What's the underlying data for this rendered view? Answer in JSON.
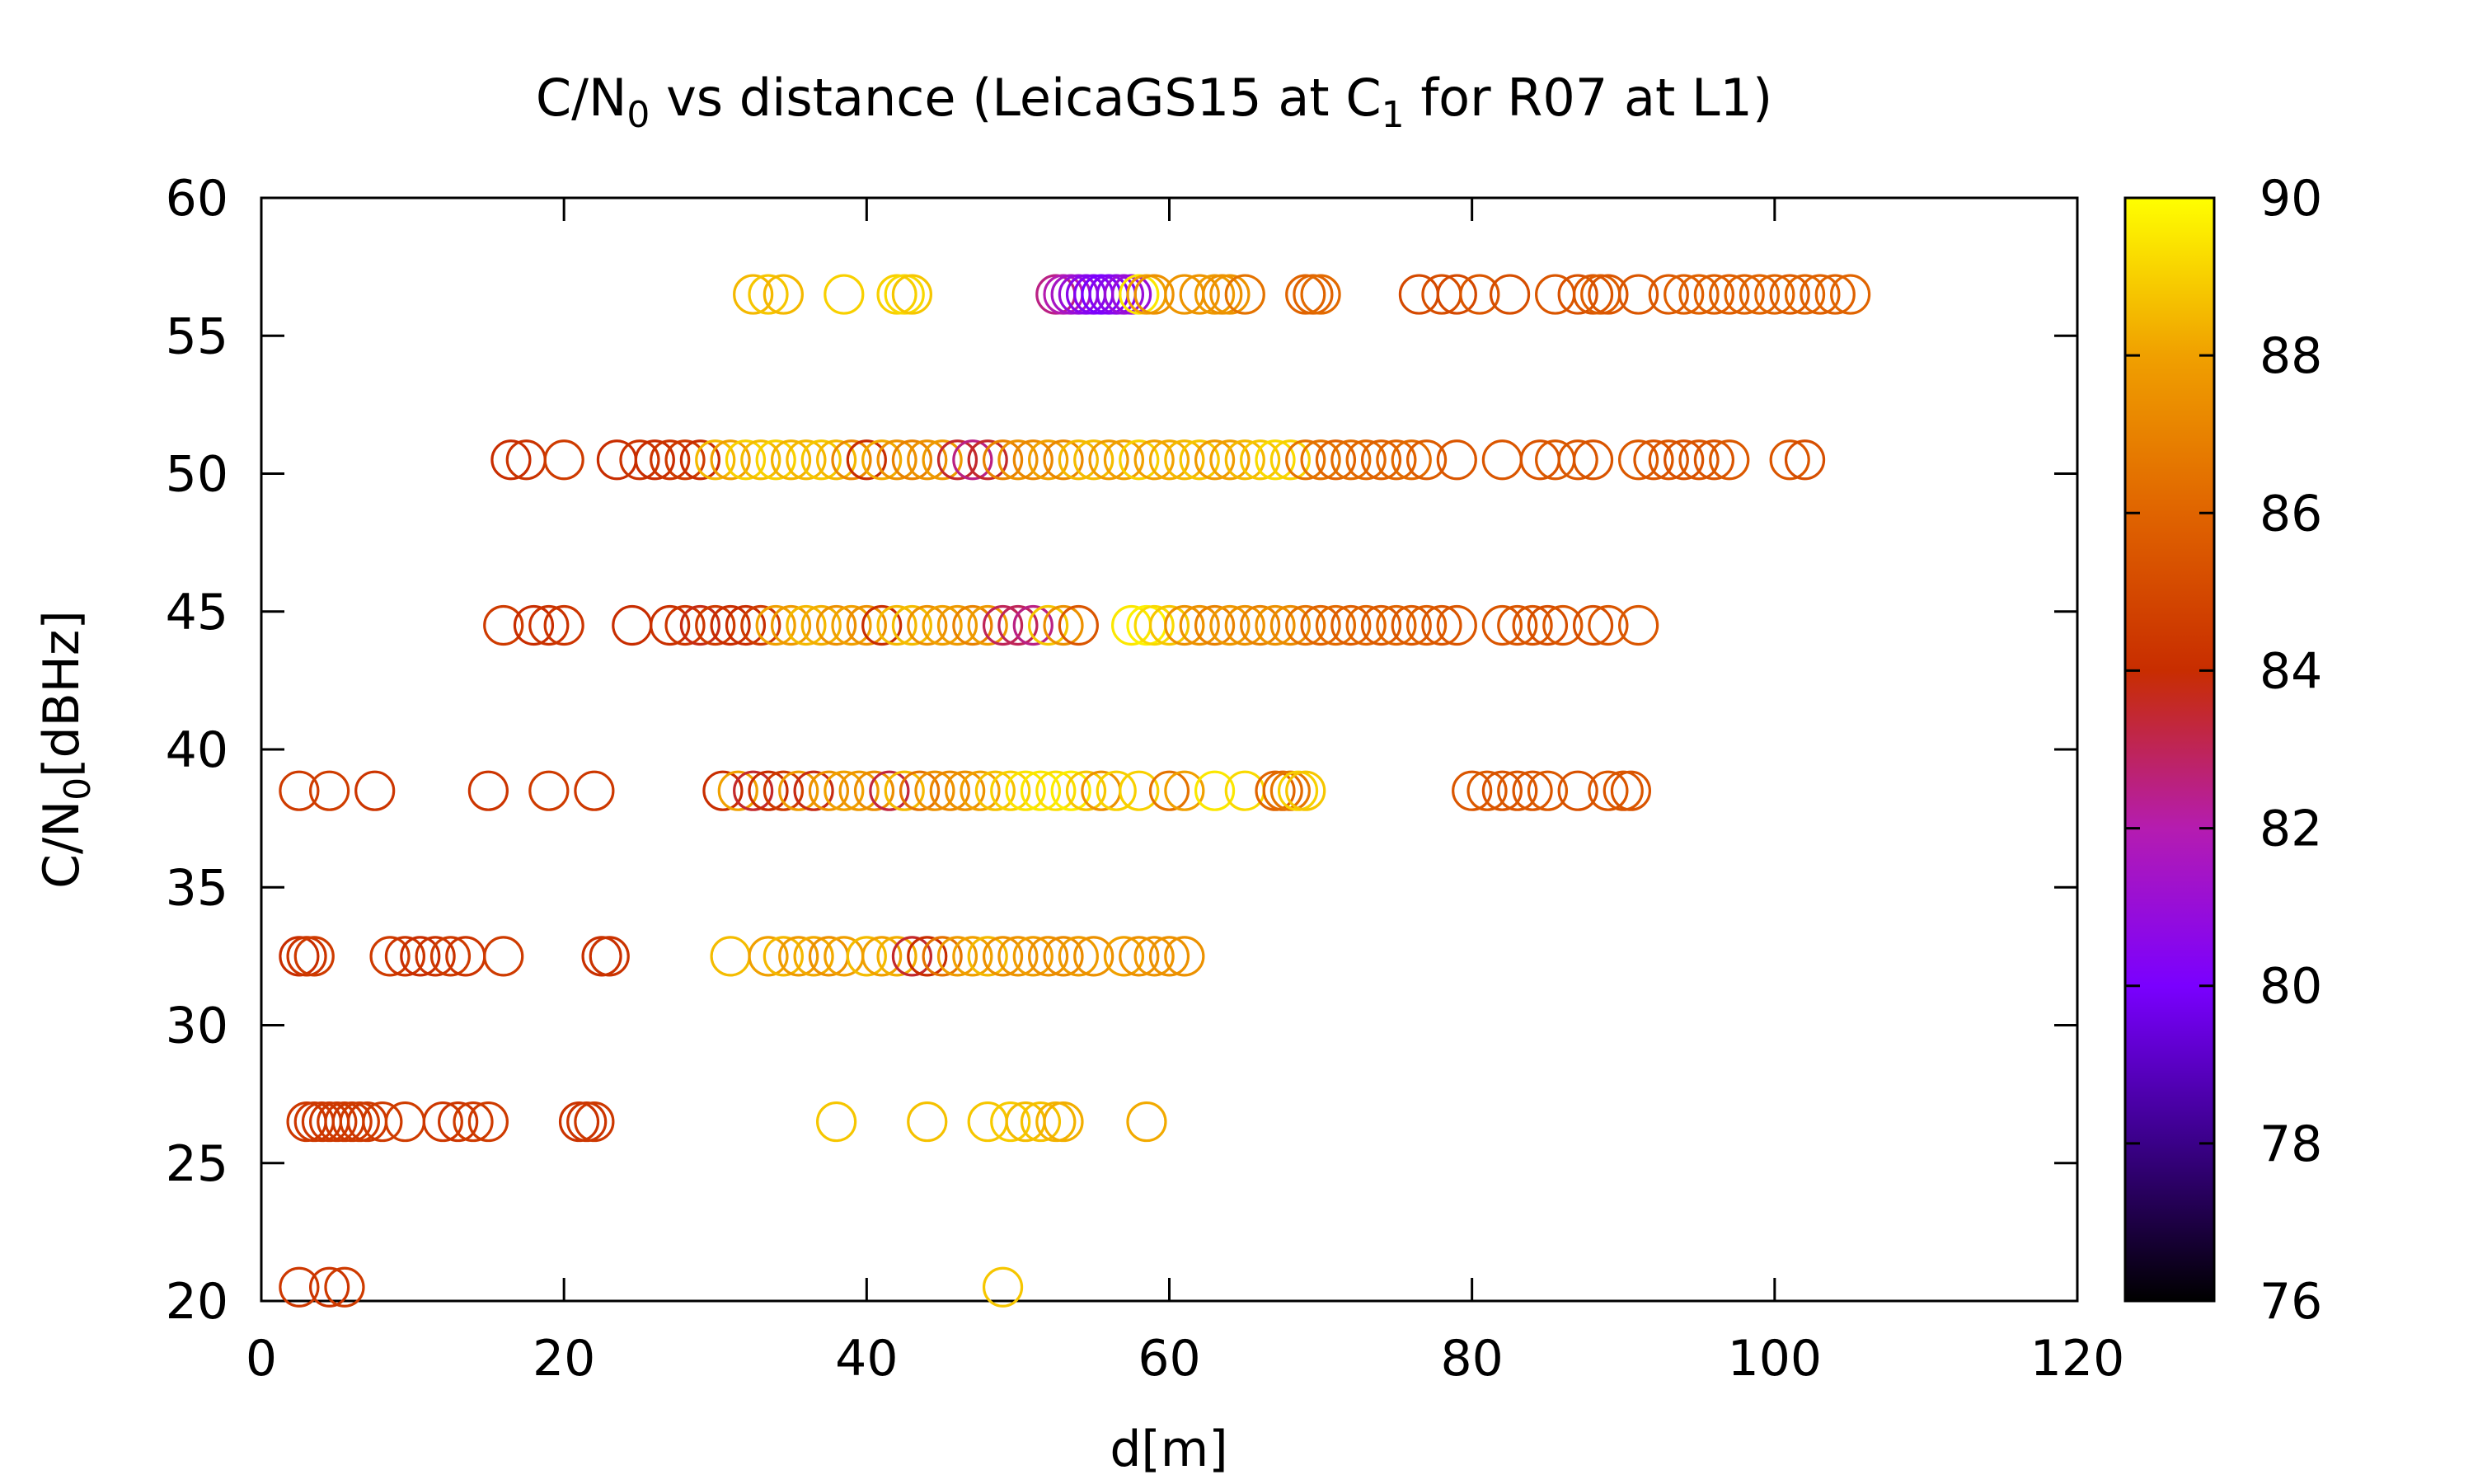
{
  "chart_data": {
    "type": "scatter",
    "title": {
      "prefix": "C/N",
      "sub": "0",
      "mid": " vs distance (LeicaGS15 at C",
      "sub2": "1",
      "suffix": " for R07 at L1)"
    },
    "xlabel": "d[m]",
    "ylabel": {
      "prefix": "C/N",
      "sub": "0",
      "suffix": "[dBHz]"
    },
    "xlim": [
      0,
      120
    ],
    "ylim": [
      20,
      60
    ],
    "xticks": [
      "0",
      "20",
      "40",
      "60",
      "80",
      "100",
      "120"
    ],
    "yticks": [
      "20",
      "25",
      "30",
      "35",
      "40",
      "45",
      "50",
      "55",
      "60"
    ],
    "colorbar": {
      "range": [
        76,
        90
      ],
      "ticks": [
        "76",
        "78",
        "80",
        "82",
        "84",
        "86",
        "88",
        "90"
      ],
      "colormap": [
        "#000000",
        "#3a0088",
        "#7a00ff",
        "#b51cb0",
        "#c82d00",
        "#e06400",
        "#f0a000",
        "#ffff00"
      ]
    },
    "marker": "open-circle",
    "groups": [
      {
        "y": 56.5,
        "x": [
          32.5,
          33.5,
          34.5,
          38.5,
          42,
          42.5,
          43,
          52.5,
          53,
          53.5,
          54,
          54.5,
          55,
          55.5,
          56,
          56.5,
          57,
          57.5,
          58,
          58.5,
          59,
          61,
          62,
          63,
          63.5,
          64,
          65,
          69,
          69.5,
          70,
          76.5,
          78,
          79,
          80.5,
          82.5,
          85.5,
          87,
          88,
          88.5,
          89,
          91,
          93,
          94,
          95,
          96,
          97,
          98,
          99,
          100,
          101,
          102,
          103,
          104,
          105
        ],
        "c": [
          88.5,
          88.8,
          88.5,
          89,
          89,
          89.2,
          88.8,
          82.5,
          82,
          81.5,
          81,
          80.5,
          80.3,
          80,
          80.2,
          80.5,
          81,
          81,
          89.5,
          88,
          87.5,
          87.6,
          87.6,
          87.8,
          87.5,
          87.6,
          86.5,
          86,
          86,
          86.2,
          85,
          85.2,
          85,
          85.5,
          85.2,
          85.5,
          85.3,
          85.5,
          85.8,
          85.5,
          85.5,
          85.6,
          85.8,
          85.9,
          85.8,
          85.8,
          85.9,
          86,
          86,
          85.7,
          86,
          85.9,
          85.9,
          86
        ]
      },
      {
        "y": 50.5,
        "x": [
          16.5,
          17.5,
          20,
          23.5,
          25,
          26,
          27,
          28,
          29,
          30,
          31,
          32,
          33,
          34,
          35,
          36,
          37,
          38,
          39,
          40,
          41,
          42,
          43,
          44,
          45,
          46,
          47,
          48,
          49,
          50,
          51,
          52,
          53,
          54,
          55,
          56,
          57,
          58,
          59,
          60,
          61,
          62,
          63,
          64,
          65,
          66,
          67,
          68,
          69,
          70,
          71,
          72,
          73,
          74,
          75,
          76,
          77,
          79,
          82,
          84.5,
          85.5,
          87,
          88,
          91,
          92,
          93,
          94,
          95,
          96,
          97,
          101,
          102
        ],
        "c": [
          84,
          84.2,
          84.5,
          84,
          84.2,
          84,
          84.3,
          84.5,
          84,
          88.5,
          88,
          89,
          88.6,
          89,
          88.4,
          88.5,
          88.8,
          88.5,
          87.2,
          84,
          88.2,
          87.5,
          87,
          87.5,
          87.8,
          83.5,
          82.5,
          83.5,
          87,
          87.5,
          87.2,
          88,
          87.2,
          88.5,
          88.6,
          87.8,
          88,
          89,
          88,
          88.2,
          88.5,
          88.8,
          87.8,
          88,
          88.5,
          88.8,
          89.2,
          89,
          86.5,
          86.5,
          86,
          86.3,
          86.1,
          85.9,
          86,
          86.2,
          85.7,
          85.5,
          85.5,
          85.4,
          85.6,
          85.5,
          85.4,
          85.6,
          85.5,
          85.5,
          85.3,
          85.5,
          85.4,
          85.6,
          85.5,
          85.2
        ]
      },
      {
        "y": 44.5,
        "x": [
          16,
          18,
          19,
          20,
          24.5,
          27,
          28,
          29,
          30,
          31,
          32,
          33,
          34,
          35,
          36,
          37,
          38,
          39,
          40,
          41,
          42,
          43,
          44,
          45,
          46,
          47,
          48,
          49,
          50,
          51,
          52,
          53,
          54,
          57.5,
          58.5,
          59,
          60,
          61,
          62,
          63,
          64,
          65,
          66,
          67,
          68,
          69,
          70,
          71,
          72,
          73,
          74,
          75,
          76,
          77,
          78,
          79,
          82,
          83,
          84,
          85,
          86,
          88,
          89,
          91
        ],
        "c": [
          84.5,
          84,
          84.2,
          84.3,
          84,
          84.1,
          84.3,
          83.8,
          84.5,
          84,
          84,
          84.5,
          88,
          87.8,
          88.5,
          88.3,
          87.5,
          88,
          87.5,
          84,
          88.5,
          88.6,
          87.5,
          88,
          87.8,
          87,
          87.8,
          83,
          83,
          82.5,
          88.8,
          87.5,
          85.5,
          89.5,
          89.7,
          89.2,
          88.8,
          87.5,
          87.5,
          87,
          87.7,
          87.5,
          87,
          87.5,
          87.3,
          86.5,
          86,
          86.2,
          85.8,
          86,
          85.6,
          86,
          85.6,
          85.8,
          85.5,
          85.5,
          85.5,
          85.5,
          85.4,
          85.2,
          85.5,
          85.2,
          85.5,
          85.5
        ]
      },
      {
        "y": 38.5,
        "x": [
          2.5,
          4.5,
          7.5,
          15,
          19,
          22,
          30.5,
          31.5,
          32.5,
          33.5,
          34.5,
          35.5,
          36.5,
          37.5,
          38.5,
          39.5,
          40.5,
          41.5,
          42.5,
          43.5,
          44.5,
          45.5,
          46.5,
          47.5,
          48.5,
          49.5,
          50.5,
          51.5,
          52.5,
          53.5,
          54.5,
          55.5,
          56.5,
          58,
          60,
          61,
          63,
          65,
          67,
          67.5,
          68,
          68.5,
          69,
          80,
          81,
          82,
          83,
          84,
          85,
          87,
          89,
          90,
          90.5
        ],
        "c": [
          84.5,
          84.6,
          84.3,
          84.3,
          84.5,
          84.4,
          84,
          88,
          83.5,
          84,
          84.5,
          87.8,
          83.8,
          87.5,
          88,
          87.7,
          87.4,
          83.3,
          88.5,
          86.5,
          87.5,
          87.2,
          87.5,
          88,
          88.7,
          89,
          89.4,
          89.5,
          89.3,
          89.6,
          88.8,
          87.5,
          89,
          89,
          86.5,
          88,
          89.5,
          89.2,
          86,
          86.2,
          86.6,
          89,
          88.8,
          85.5,
          85.6,
          85.4,
          85.5,
          85.5,
          85.6,
          85.3,
          85.5,
          85.5,
          85.4
        ]
      },
      {
        "y": 32.5,
        "x": [
          2.5,
          3,
          3.5,
          8.5,
          9.5,
          10.5,
          11.5,
          12.5,
          13.5,
          16,
          22.5,
          23,
          31,
          33.5,
          34.5,
          35.5,
          36.5,
          37.5,
          38.5,
          40,
          41,
          42,
          43,
          44,
          45,
          46,
          47,
          48,
          49,
          50,
          51,
          52,
          53,
          54,
          55,
          57,
          58,
          59,
          60,
          61
        ],
        "c": [
          84,
          84.3,
          84.5,
          84.5,
          84.3,
          84,
          84.2,
          84.5,
          84.3,
          84.5,
          84.1,
          84.2,
          88.6,
          88,
          88.5,
          87.8,
          88.2,
          87.5,
          88,
          88.6,
          88,
          88.3,
          83.5,
          84,
          86.5,
          87.8,
          88,
          88.5,
          87.5,
          87.6,
          87.9,
          87.5,
          87.3,
          87.8,
          87.5,
          88,
          87.5,
          87.6,
          87.5,
          87.5
        ]
      },
      {
        "y": 26.5,
        "x": [
          3,
          3.5,
          4,
          4.5,
          5,
          5.5,
          6,
          6.5,
          7,
          8,
          9.5,
          12,
          13,
          14,
          15,
          21,
          21.5,
          22,
          38,
          44,
          48,
          49.5,
          50.5,
          51.5,
          52.5,
          53,
          58.5
        ],
        "c": [
          84.4,
          84.4,
          84.4,
          84.4,
          84.4,
          84.4,
          84.4,
          84.5,
          84.4,
          84.5,
          84.6,
          84.4,
          84.3,
          84.5,
          84.5,
          84.2,
          84.3,
          84.4,
          88.8,
          88.7,
          88.8,
          88.9,
          88.6,
          88.7,
          88.4,
          88.3,
          88.2
        ]
      },
      {
        "y": 20.5,
        "x": [
          2.5,
          4.5,
          5.5,
          49
        ],
        "c": [
          84.4,
          84.3,
          84.5,
          88.8
        ]
      }
    ]
  }
}
